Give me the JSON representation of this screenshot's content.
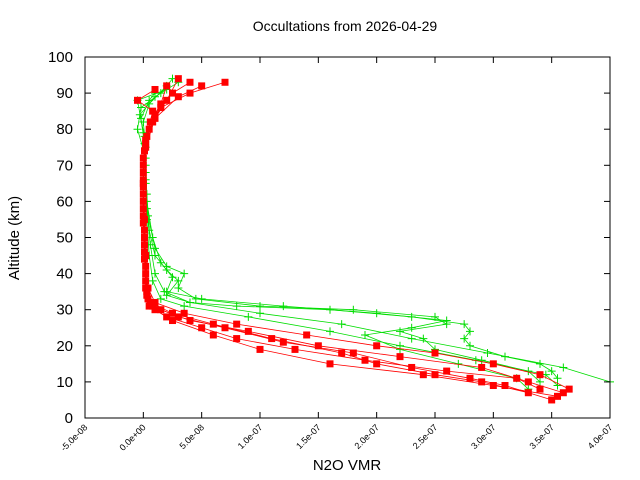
{
  "chart_data": {
    "type": "scatter",
    "title": "Occultations from 2026-04-29",
    "xlabel": "N2O VMR",
    "ylabel": "Altitude (km)",
    "xlim": [
      -5e-08,
      4e-07
    ],
    "ylim": [
      0,
      100
    ],
    "grid": false,
    "legend": "none",
    "x_ticks": [
      "-5.0e-08",
      "0.0e+00",
      "5.0e-08",
      "1.0e-07",
      "1.5e-07",
      "2.0e-07",
      "2.5e-07",
      "3.0e-07",
      "3.5e-07",
      "4.0e-07"
    ],
    "x_tick_values": [
      -5e-08,
      0,
      5e-08,
      1e-07,
      1.5e-07,
      2e-07,
      2.5e-07,
      3e-07,
      3.5e-07,
      4e-07
    ],
    "y_ticks": [
      "0",
      "10",
      "20",
      "30",
      "40",
      "50",
      "60",
      "70",
      "80",
      "90",
      "100"
    ],
    "y_tick_values": [
      0,
      10,
      20,
      30,
      40,
      50,
      60,
      70,
      80,
      90,
      100
    ],
    "series": [
      {
        "color": "#00dd00",
        "marker": "plus",
        "profiles": [
          [
            [
              3.55e-07,
              9
            ],
            [
              3.45e-07,
              12
            ],
            [
              2.85e-07,
              16
            ],
            [
              2.2e-07,
              20
            ],
            [
              1.6e-07,
              24
            ],
            [
              9e-08,
              28
            ],
            [
              3.5e-08,
              31
            ],
            [
              1.5e-08,
              33
            ],
            [
              8e-09,
              38
            ],
            [
              5e-09,
              45
            ],
            [
              3e-09,
              55
            ],
            [
              2e-09,
              65
            ],
            [
              2e-09,
              75
            ],
            [
              0,
              82
            ],
            [
              5e-09,
              87
            ],
            [
              2e-08,
              92
            ]
          ],
          [
            [
              4e-07,
              10
            ],
            [
              3.6e-07,
              14
            ],
            [
              2.95e-07,
              18
            ],
            [
              2.3e-07,
              22
            ],
            [
              1.7e-07,
              26
            ],
            [
              1e-07,
              29
            ],
            [
              4e-08,
              32
            ],
            [
              1.8e-08,
              35
            ],
            [
              1e-08,
              40
            ],
            [
              6e-09,
              48
            ],
            [
              3e-09,
              58
            ],
            [
              2e-09,
              68
            ],
            [
              1e-09,
              78
            ],
            [
              -3e-09,
              84
            ],
            [
              1e-08,
              89
            ],
            [
              3e-08,
              93
            ]
          ],
          [
            [
              3.55e-07,
              11
            ],
            [
              3.5e-07,
              13
            ],
            [
              3.4e-07,
              15
            ],
            [
              3.1e-07,
              17
            ],
            [
              2.8e-07,
              20
            ],
            [
              2.75e-07,
              22
            ],
            [
              2.8e-07,
              24
            ],
            [
              2.75e-07,
              26
            ],
            [
              2.3e-07,
              28
            ],
            [
              1.6e-07,
              30
            ],
            [
              8e-08,
              31
            ],
            [
              4e-08,
              32
            ],
            [
              2e-08,
              34
            ],
            [
              3e-08,
              38
            ],
            [
              2e-08,
              41
            ],
            [
              1e-08,
              45
            ],
            [
              5e-09,
              52
            ],
            [
              3e-09,
              62
            ],
            [
              2e-09,
              72
            ],
            [
              -5e-09,
              80
            ],
            [
              -2e-09,
              86
            ],
            [
              1.5e-08,
              90
            ],
            [
              2.5e-08,
              94
            ]
          ],
          [
            [
              3.3e-07,
              8
            ],
            [
              3.2e-07,
              11
            ],
            [
              2.7e-07,
              15
            ],
            [
              2.2e-07,
              19
            ],
            [
              1.9e-07,
              23
            ],
            [
              2.3e-07,
              25
            ],
            [
              2.6e-07,
              27
            ],
            [
              2e-07,
              29
            ],
            [
              1.2e-07,
              31
            ],
            [
              5e-08,
              33
            ],
            [
              2e-08,
              35
            ],
            [
              2.5e-08,
              39
            ],
            [
              1.5e-08,
              43
            ],
            [
              8e-09,
              50
            ],
            [
              3e-09,
              60
            ],
            [
              2e-09,
              70
            ],
            [
              0,
              79
            ],
            [
              -5e-09,
              88
            ],
            [
              2e-08,
              91
            ]
          ],
          [
            [
              3.4e-07,
              10
            ],
            [
              3.3e-07,
              13
            ],
            [
              2.9e-07,
              16
            ],
            [
              2.5e-07,
              19
            ],
            [
              2.4e-07,
              22
            ],
            [
              2.2e-07,
              24
            ],
            [
              2.6e-07,
              26
            ],
            [
              2.5e-07,
              28
            ],
            [
              1.8e-07,
              30
            ],
            [
              1e-07,
              31
            ],
            [
              4.5e-08,
              33
            ],
            [
              3e-08,
              36
            ],
            [
              3.5e-08,
              40
            ],
            [
              2e-08,
              42
            ],
            [
              1e-08,
              47
            ],
            [
              4e-09,
              56
            ],
            [
              2e-09,
              66
            ],
            [
              1e-09,
              76
            ],
            [
              -2e-09,
              83
            ],
            [
              5e-09,
              88
            ],
            [
              1e-08,
              90
            ]
          ]
        ]
      },
      {
        "color": "#ff0000",
        "marker": "square",
        "profiles": [
          [
            [
              3.55e-07,
              6
            ],
            [
              3e-07,
              9
            ],
            [
              2.4e-07,
              12
            ],
            [
              1.6e-07,
              15
            ],
            [
              1e-07,
              19
            ],
            [
              6e-08,
              23
            ],
            [
              2.5e-08,
              27
            ],
            [
              1e-08,
              30
            ],
            [
              3e-09,
              34
            ],
            [
              2e-09,
              40
            ],
            [
              1e-09,
              50
            ],
            [
              0,
              60
            ],
            [
              0,
              70
            ],
            [
              3e-09,
              78
            ],
            [
              1e-08,
              84
            ],
            [
              2.5e-08,
              90
            ],
            [
              4e-08,
              93
            ]
          ],
          [
            [
              3.6e-07,
              7
            ],
            [
              3.3e-07,
              10
            ],
            [
              2.9e-07,
              14
            ],
            [
              2.2e-07,
              17
            ],
            [
              1.5e-07,
              20
            ],
            [
              9e-08,
              24
            ],
            [
              4e-08,
              27
            ],
            [
              1.5e-08,
              30
            ],
            [
              4e-09,
              33
            ],
            [
              2e-09,
              42
            ],
            [
              1e-09,
              52
            ],
            [
              0,
              62
            ],
            [
              0,
              72
            ],
            [
              5e-09,
              80
            ],
            [
              1.5e-08,
              86
            ],
            [
              4e-08,
              90
            ],
            [
              7e-08,
              93
            ]
          ],
          [
            [
              3.4e-07,
              8
            ],
            [
              3.2e-07,
              11
            ],
            [
              2.6e-07,
              13
            ],
            [
              1.9e-07,
              16
            ],
            [
              1.3e-07,
              19
            ],
            [
              8e-08,
              22
            ],
            [
              5e-08,
              25
            ],
            [
              2e-08,
              28
            ],
            [
              5e-09,
              31
            ],
            [
              2e-09,
              36
            ],
            [
              1e-09,
              46
            ],
            [
              0,
              56
            ],
            [
              0,
              66
            ],
            [
              2e-09,
              76
            ],
            [
              8e-09,
              82
            ],
            [
              2e-08,
              88
            ],
            [
              3e-08,
              94
            ]
          ],
          [
            [
              3.5e-07,
              5
            ],
            [
              3.1e-07,
              9
            ],
            [
              2.8e-07,
              11
            ],
            [
              2.3e-07,
              14
            ],
            [
              1.8e-07,
              18
            ],
            [
              1.2e-07,
              21
            ],
            [
              7e-08,
              25
            ],
            [
              3e-08,
              28
            ],
            [
              8e-09,
              31
            ],
            [
              3e-09,
              35
            ],
            [
              1e-09,
              44
            ],
            [
              0,
              54
            ],
            [
              0,
              64
            ],
            [
              1e-09,
              74
            ],
            [
              6e-09,
              82
            ],
            [
              1.5e-08,
              87
            ],
            [
              2e-08,
              92
            ]
          ],
          [
            [
              3.65e-07,
              8
            ],
            [
              3.4e-07,
              12
            ],
            [
              3e-07,
              15
            ],
            [
              2.5e-07,
              18
            ],
            [
              2e-07,
              20
            ],
            [
              1.4e-07,
              23
            ],
            [
              8e-08,
              26
            ],
            [
              3.5e-08,
              29
            ],
            [
              1e-08,
              32
            ],
            [
              4e-09,
              36
            ],
            [
              2e-09,
              45
            ],
            [
              1e-09,
              55
            ],
            [
              0,
              65
            ],
            [
              2e-09,
              75
            ],
            [
              1e-08,
              83
            ],
            [
              3e-08,
              89
            ],
            [
              5e-08,
              92
            ]
          ],
          [
            [
              3.3e-07,
              7
            ],
            [
              2.9e-07,
              10
            ],
            [
              2.5e-07,
              12
            ],
            [
              2e-07,
              15
            ],
            [
              1.7e-07,
              18
            ],
            [
              1.1e-07,
              22
            ],
            [
              6e-08,
              26
            ],
            [
              2.5e-08,
              29
            ],
            [
              6e-09,
              32
            ],
            [
              2e-09,
              38
            ],
            [
              1e-09,
              48
            ],
            [
              0,
              58
            ],
            [
              0,
              68
            ],
            [
              2e-09,
              77
            ],
            [
              8e-09,
              85
            ],
            [
              -5e-09,
              88
            ],
            [
              1e-08,
              91
            ]
          ]
        ]
      }
    ]
  }
}
